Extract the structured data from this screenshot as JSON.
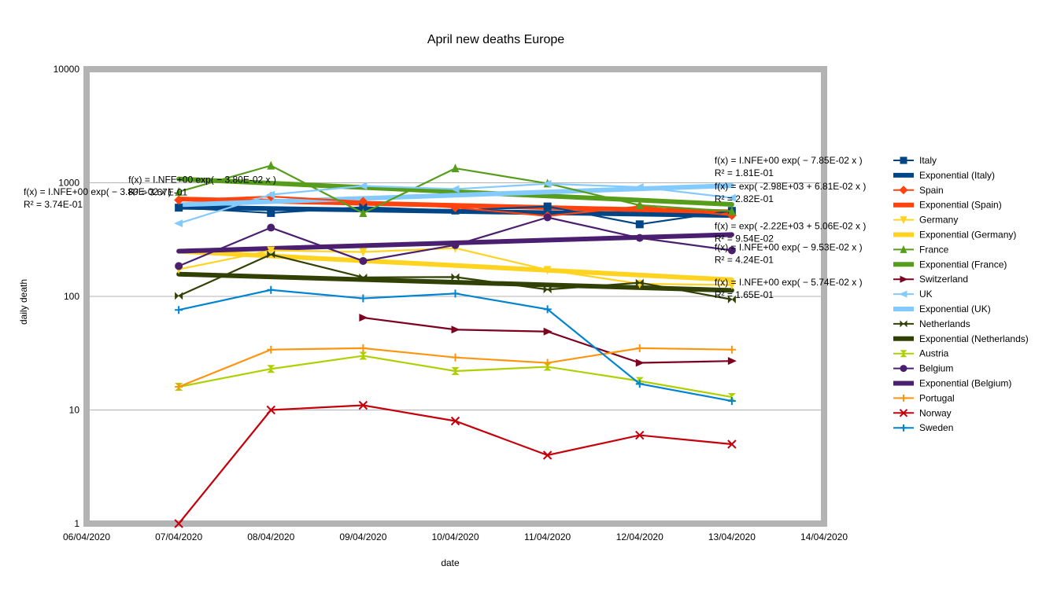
{
  "chart_data": {
    "type": "line",
    "title": "April new deaths Europe",
    "xlabel": "date",
    "ylabel": "daily death",
    "y_scale": "log",
    "ylim": [
      1,
      10000
    ],
    "y_ticks": [
      1,
      10,
      100,
      1000,
      10000
    ],
    "y_tick_labels": [
      "1",
      "10",
      "100",
      "1000",
      "10000"
    ],
    "x_ticks": [
      "06/04/2020",
      "07/04/2020",
      "08/04/2020",
      "09/04/2020",
      "10/04/2020",
      "11/04/2020",
      "12/04/2020",
      "13/04/2020",
      "14/04/2020"
    ],
    "xlim": [
      "06/04/2020",
      "14/04/2020"
    ],
    "grid": true,
    "legend_position": "right",
    "series": [
      {
        "name": "Italy",
        "color": "#004586",
        "marker": "square",
        "x": [
          "07/04/2020",
          "08/04/2020",
          "09/04/2020",
          "10/04/2020",
          "11/04/2020",
          "12/04/2020",
          "13/04/2020"
        ],
        "values": [
          604,
          542,
          610,
          570,
          619,
          431,
          566
        ]
      },
      {
        "name": "Spain",
        "color": "#ff420e",
        "marker": "diamond",
        "x": [
          "07/04/2020",
          "08/04/2020",
          "09/04/2020",
          "10/04/2020",
          "11/04/2020",
          "12/04/2020",
          "13/04/2020"
        ],
        "values": [
          704,
          757,
          683,
          605,
          510,
          619,
          517
        ]
      },
      {
        "name": "Germany",
        "color": "#ffd320",
        "marker": "triangle-down",
        "x": [
          "07/04/2020",
          "08/04/2020",
          "09/04/2020",
          "10/04/2020",
          "11/04/2020",
          "12/04/2020",
          "13/04/2020"
        ],
        "values": [
          173,
          254,
          246,
          266,
          171,
          129,
          126
        ]
      },
      {
        "name": "France",
        "color": "#579d1c",
        "marker": "triangle-up",
        "x": [
          "07/04/2020",
          "08/04/2020",
          "09/04/2020",
          "10/04/2020",
          "11/04/2020",
          "12/04/2020",
          "13/04/2020"
        ],
        "values": [
          833,
          1417,
          541,
          1341,
          987,
          635,
          561
        ]
      },
      {
        "name": "Switzerland",
        "color": "#7e0021",
        "marker": "triangle-right",
        "x": [
          "09/04/2020",
          "10/04/2020",
          "11/04/2020",
          "12/04/2020",
          "13/04/2020"
        ],
        "values": [
          65,
          51,
          49,
          26,
          27
        ]
      },
      {
        "name": "UK",
        "color": "#83caff",
        "marker": "triangle-left",
        "x": [
          "07/04/2020",
          "08/04/2020",
          "09/04/2020",
          "10/04/2020",
          "11/04/2020",
          "12/04/2020",
          "13/04/2020"
        ],
        "values": [
          439,
          786,
          938,
          881,
          980,
          917,
          737
        ]
      },
      {
        "name": "Netherlands",
        "color": "#314004",
        "marker": "bowtie",
        "x": [
          "07/04/2020",
          "08/04/2020",
          "09/04/2020",
          "10/04/2020",
          "11/04/2020",
          "12/04/2020",
          "13/04/2020"
        ],
        "values": [
          101,
          234,
          147,
          148,
          115,
          132,
          94
        ]
      },
      {
        "name": "Austria",
        "color": "#aecf00",
        "marker": "hourglass",
        "x": [
          "07/04/2020",
          "08/04/2020",
          "09/04/2020",
          "10/04/2020",
          "11/04/2020",
          "12/04/2020",
          "13/04/2020"
        ],
        "values": [
          16,
          23,
          30,
          22,
          24,
          18,
          13
        ]
      },
      {
        "name": "Belgium",
        "color": "#4b1f6f",
        "marker": "circle",
        "x": [
          "07/04/2020",
          "08/04/2020",
          "09/04/2020",
          "10/04/2020",
          "11/04/2020",
          "12/04/2020",
          "13/04/2020"
        ],
        "values": [
          185,
          403,
          205,
          283,
          496,
          327,
          254
        ]
      },
      {
        "name": "Portugal",
        "color": "#ff950e",
        "marker": "plus",
        "x": [
          "07/04/2020",
          "08/04/2020",
          "09/04/2020",
          "10/04/2020",
          "11/04/2020",
          "12/04/2020",
          "13/04/2020"
        ],
        "values": [
          16,
          34,
          35,
          29,
          26,
          35,
          34
        ]
      },
      {
        "name": "Norway",
        "color": "#c5000b",
        "marker": "x",
        "x": [
          "07/04/2020",
          "08/04/2020",
          "09/04/2020",
          "10/04/2020",
          "11/04/2020",
          "12/04/2020",
          "13/04/2020"
        ],
        "values": [
          1,
          10,
          11,
          8,
          4,
          6,
          5
        ]
      },
      {
        "name": "Sweden",
        "color": "#0084d1",
        "marker": "plus",
        "x": [
          "07/04/2020",
          "08/04/2020",
          "09/04/2020",
          "10/04/2020",
          "11/04/2020",
          "12/04/2020",
          "13/04/2020"
        ],
        "values": [
          76,
          114,
          96,
          106,
          77,
          17,
          12
        ]
      }
    ],
    "trendlines": [
      {
        "name": "Exponential (Italy)",
        "color": "#004586",
        "x": [
          "07/04/2020",
          "13/04/2020"
        ],
        "values": [
          610,
          515
        ]
      },
      {
        "name": "Exponential (Spain)",
        "color": "#ff420e",
        "x": [
          "07/04/2020",
          "13/04/2020"
        ],
        "values": [
          720,
          555
        ]
      },
      {
        "name": "Exponential (Germany)",
        "color": "#ffd320",
        "x": [
          "07/04/2020",
          "13/04/2020"
        ],
        "values": [
          250,
          140
        ]
      },
      {
        "name": "Exponential (France)",
        "color": "#579d1c",
        "x": [
          "07/04/2020",
          "13/04/2020"
        ],
        "values": [
          1080,
          645
        ]
      },
      {
        "name": "Exponential (UK)",
        "color": "#83caff",
        "x": [
          "07/04/2020",
          "13/04/2020"
        ],
        "values": [
          640,
          945
        ]
      },
      {
        "name": "Exponential (Netherlands)",
        "color": "#314004",
        "x": [
          "07/04/2020",
          "13/04/2020"
        ],
        "values": [
          157,
          113
        ]
      },
      {
        "name": "Exponential (Belgium)",
        "color": "#4b1f6f",
        "x": [
          "07/04/2020",
          "13/04/2020"
        ],
        "values": [
          250,
          350
        ]
      }
    ],
    "annotations": [
      {
        "lines": [
          "f(x) = I.NFE+00 exp( − 3.80E-02 x )",
          "R² = 3.67E-01"
        ],
        "x": "07/04/2020",
        "y": 1000,
        "anchor": "start"
      },
      {
        "lines": [
          "f(x) = I.NFE+00 exp( − 3.80E-02 x )",
          "R² = 3.74E-01"
        ],
        "x": "06/04/2020",
        "y": 780,
        "anchor": "start"
      },
      {
        "lines": [
          "f(x) = I.NFE+00 exp( − 7.85E-02 x )",
          "R² = 1.81E-01"
        ],
        "x": "13/04/2020",
        "y": 1480,
        "anchor": "start"
      },
      {
        "lines": [
          "f(x) = exp( -2.98E+03 + 6.81E-02 x )",
          "R² = 2.82E-01"
        ],
        "x": "13/04/2020",
        "y": 870,
        "anchor": "start"
      },
      {
        "lines": [
          "f(x) = exp( -2.22E+03 + 5.06E-02 x )",
          "R² = 9.54E-02"
        ],
        "x": "13/04/2020",
        "y": 390,
        "anchor": "start"
      },
      {
        "lines": [
          "f(x) = I.NFE+00 exp( − 9.53E-02 x )",
          "R² = 4.24E-01"
        ],
        "x": "13/04/2020",
        "y": 255,
        "anchor": "start"
      },
      {
        "lines": [
          "f(x) = I.NFE+00 exp( − 5.74E-02 x )",
          "R² = 1.65E-01"
        ],
        "x": "13/04/2020",
        "y": 125,
        "anchor": "start"
      }
    ],
    "legend": [
      {
        "label": "Italy",
        "color": "#004586",
        "kind": "series",
        "marker": "square"
      },
      {
        "label": "Exponential (Italy)",
        "color": "#004586",
        "kind": "trend"
      },
      {
        "label": "Spain",
        "color": "#ff420e",
        "kind": "series",
        "marker": "diamond"
      },
      {
        "label": "Exponential (Spain)",
        "color": "#ff420e",
        "kind": "trend"
      },
      {
        "label": "Germany",
        "color": "#ffd320",
        "kind": "series",
        "marker": "triangle-down"
      },
      {
        "label": "Exponential (Germany)",
        "color": "#ffd320",
        "kind": "trend"
      },
      {
        "label": "France",
        "color": "#579d1c",
        "kind": "series",
        "marker": "triangle-up"
      },
      {
        "label": "Exponential (France)",
        "color": "#579d1c",
        "kind": "trend"
      },
      {
        "label": "Switzerland",
        "color": "#7e0021",
        "kind": "series",
        "marker": "triangle-right"
      },
      {
        "label": "UK",
        "color": "#83caff",
        "kind": "series",
        "marker": "triangle-left"
      },
      {
        "label": "Exponential (UK)",
        "color": "#83caff",
        "kind": "trend"
      },
      {
        "label": "Netherlands",
        "color": "#314004",
        "kind": "series",
        "marker": "bowtie"
      },
      {
        "label": "Exponential (Netherlands)",
        "color": "#314004",
        "kind": "trend"
      },
      {
        "label": "Austria",
        "color": "#aecf00",
        "kind": "series",
        "marker": "hourglass"
      },
      {
        "label": "Belgium",
        "color": "#4b1f6f",
        "kind": "series",
        "marker": "circle"
      },
      {
        "label": "Exponential (Belgium)",
        "color": "#4b1f6f",
        "kind": "trend"
      },
      {
        "label": "Portugal",
        "color": "#ff950e",
        "kind": "series",
        "marker": "plus"
      },
      {
        "label": "Norway",
        "color": "#c5000b",
        "kind": "series",
        "marker": "x"
      },
      {
        "label": "Sweden",
        "color": "#0084d1",
        "kind": "series",
        "marker": "plus"
      }
    ],
    "colors": {
      "plot_border": "#b3b3b3",
      "gridline": "#b3b3b3"
    }
  }
}
